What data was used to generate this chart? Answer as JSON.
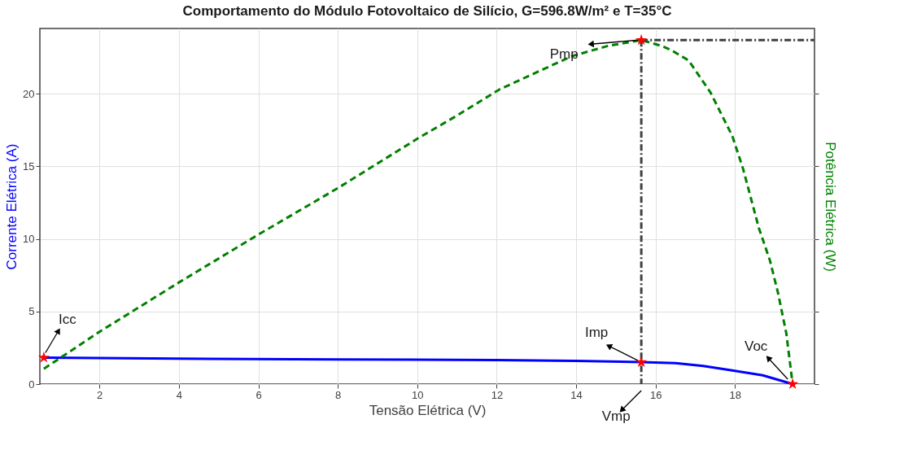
{
  "chart_data": {
    "type": "line",
    "title": "Comportamento do Módulo Fotovoltaico de Silício, G=596.8W/m² e T=35°C",
    "xlabel": "Tensão Elétrica (V)",
    "ylabel": "Corrente Elétrica (A)",
    "y2label": "Potência Elétrica (W)",
    "xlim": [
      0.5,
      20
    ],
    "xticks": [
      2,
      4,
      6,
      8,
      10,
      12,
      14,
      16,
      18
    ],
    "ylim": [
      0,
      24.5
    ],
    "yticks": [
      0,
      5,
      10,
      15,
      20
    ],
    "grid": true,
    "series": [
      {
        "color": "#0000ff",
        "line_style": "solid",
        "x": [
          0.6,
          4,
          8,
          12,
          14,
          15.64,
          16.5,
          17.2,
          17.9,
          18.7,
          19.45
        ],
        "values": [
          1.82,
          1.75,
          1.7,
          1.65,
          1.6,
          1.51,
          1.45,
          1.25,
          0.95,
          0.6,
          0
        ]
      },
      {
        "color": "#008000",
        "line_style": "dashed",
        "x": [
          0.6,
          2,
          4,
          6,
          8,
          9,
          10,
          11,
          12.07,
          13.1,
          13.9,
          14.8,
          15.64,
          16.15,
          16.4,
          16.83,
          17.38,
          17.93,
          18.2,
          18.6,
          18.88,
          19.08,
          19.29,
          19.45
        ],
        "values": [
          1.05,
          3.6,
          7.0,
          10.3,
          13.5,
          15.2,
          16.9,
          18.5,
          20.3,
          21.6,
          22.6,
          23.3,
          23.7,
          23.3,
          23.0,
          22.3,
          20.1,
          17.1,
          14.85,
          10.75,
          8.5,
          6.3,
          3.5,
          0
        ]
      },
      {
        "color": "#404040",
        "line_style": "dashdot",
        "x": [
          15.64,
          15.64
        ],
        "values": [
          23.7,
          0
        ]
      },
      {
        "color": "#404040",
        "line_style": "dashdot",
        "x": [
          15.64,
          20
        ],
        "values": [
          23.7,
          23.7
        ]
      },
      {
        "type": "scatter",
        "color": "#ff0000",
        "marker": "star",
        "x": [
          0.6,
          15.64,
          15.64,
          19.45
        ],
        "values": [
          1.82,
          1.51,
          23.7,
          0
        ]
      }
    ],
    "annotations": [
      {
        "text": "Icc",
        "x": 0.6,
        "y": 1.82
      },
      {
        "text": "Pmp",
        "x": 15.64,
        "y": 23.7
      },
      {
        "text": "Imp",
        "x": 15.64,
        "y": 1.51
      },
      {
        "text": "Vmp",
        "x": 15.64,
        "y": 0
      },
      {
        "text": "Voc",
        "x": 19.45,
        "y": 0
      }
    ]
  }
}
